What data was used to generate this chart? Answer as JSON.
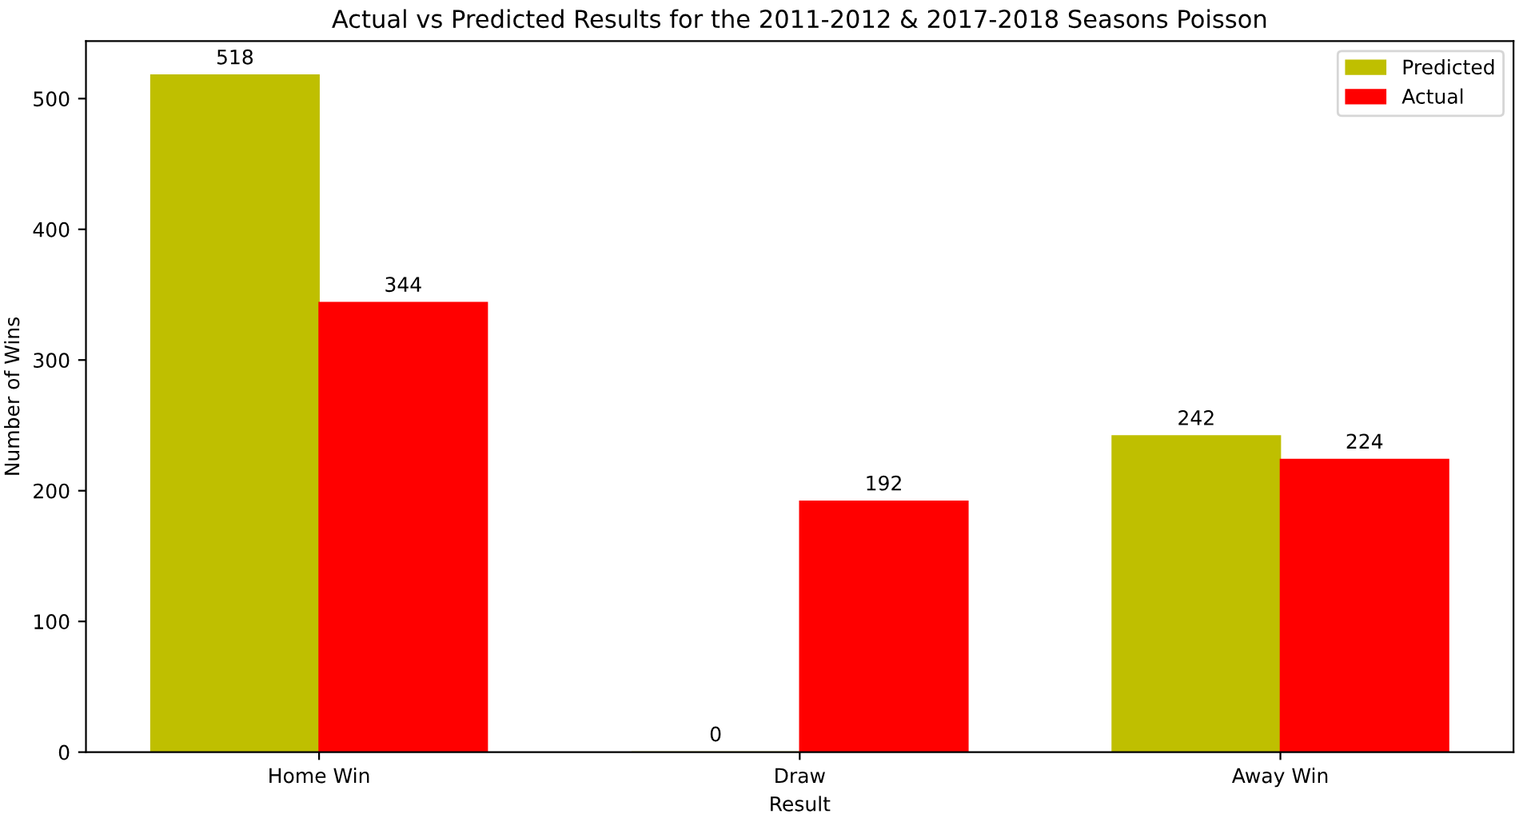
{
  "chart_data": {
    "type": "bar",
    "title": "Actual vs Predicted Results for the 2011-2012 & 2017-2018 Seasons Poisson",
    "xlabel": "Result",
    "ylabel": "Number of Wins",
    "categories": [
      "Home Win",
      "Draw",
      "Away Win"
    ],
    "series": [
      {
        "name": "Predicted",
        "color": "#bfbf00",
        "values": [
          518,
          0,
          242
        ]
      },
      {
        "name": "Actual",
        "color": "#ff0000",
        "values": [
          344,
          192,
          224
        ]
      }
    ],
    "data_labels": true,
    "ylim": [
      0,
      544
    ],
    "yticks": [
      0,
      100,
      200,
      300,
      400,
      500
    ],
    "legend": "top right",
    "grid": false
  }
}
